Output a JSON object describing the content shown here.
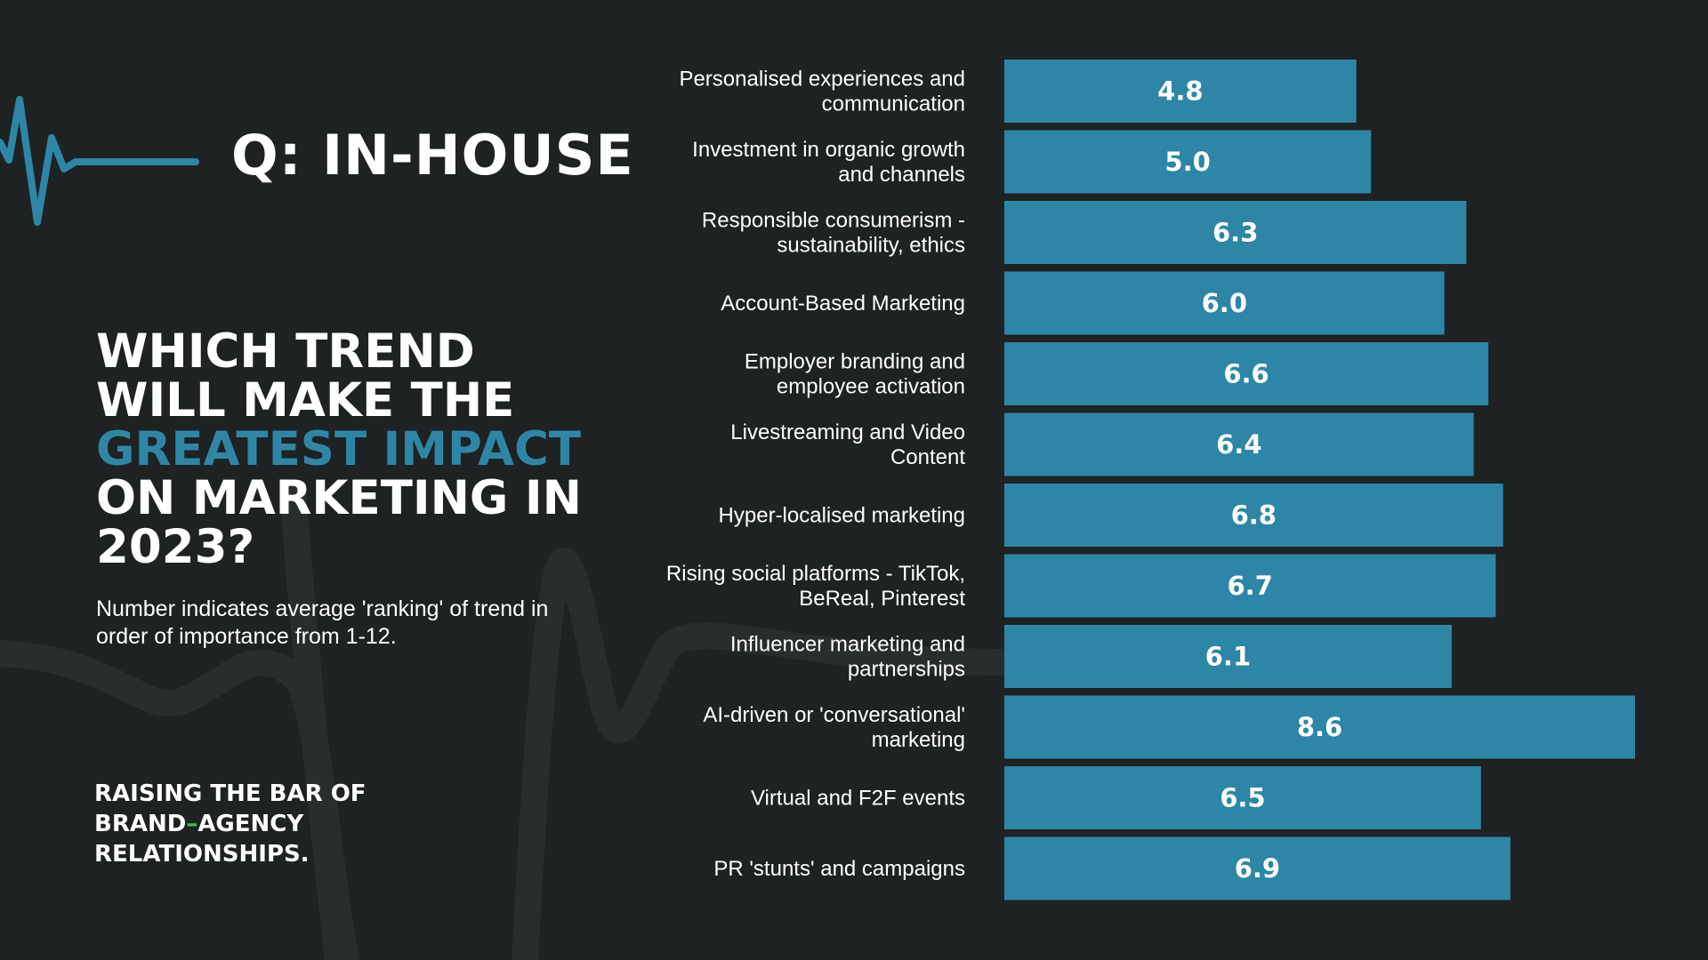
{
  "header": {
    "title": "Q: IN-HOUSE"
  },
  "question": {
    "line1": "WHICH TREND",
    "line2": "WILL MAKE THE",
    "highlight": "GREATEST IMPACT",
    "line4": "ON MARKETING IN",
    "line5": "2023?"
  },
  "note": "Number indicates average 'ranking' of trend in order of importance from 1-12.",
  "tagline": {
    "line1": "RAISING THE BAR OF",
    "brand": "BRAND",
    "dash": "–",
    "agency": "AGENCY",
    "line3": "RELATIONSHIPS."
  },
  "colors": {
    "background": "#1f2222",
    "bar": "#2e86a6",
    "highlight": "#2e86a6",
    "dash": "#3fbf4f"
  },
  "icons": {
    "heartbeat": "heartbeat-line-icon"
  },
  "chart_data": {
    "type": "bar",
    "orientation": "horizontal",
    "title": "",
    "xlabel": "",
    "ylabel": "",
    "xlim": [
      0,
      8.6
    ],
    "grid": false,
    "categories": [
      [
        "Personalised experiences and",
        "communication"
      ],
      [
        "Investment in organic growth",
        "and channels"
      ],
      [
        "Responsible consumerism -",
        "sustainability, ethics"
      ],
      [
        "Account-Based Marketing"
      ],
      [
        "Employer branding and",
        "employee activation"
      ],
      [
        "Livestreaming and Video",
        "Content"
      ],
      [
        "Hyper-localised marketing"
      ],
      [
        "Rising social platforms - TikTok,",
        "BeReal, Pinterest"
      ],
      [
        "Influencer marketing and",
        "partnerships"
      ],
      [
        "AI-driven or 'conversational'",
        "marketing"
      ],
      [
        "Virtual and F2F events"
      ],
      [
        "PR 'stunts' and campaigns"
      ]
    ],
    "values": [
      4.8,
      5.0,
      6.3,
      6.0,
      6.6,
      6.4,
      6.8,
      6.7,
      6.1,
      8.6,
      6.5,
      6.9
    ],
    "value_labels": [
      "4.8",
      "5.0",
      "6.3",
      "6.0",
      "6.6",
      "6.4",
      "6.8",
      "6.7",
      "6.1",
      "8.6",
      "6.5",
      "6.9"
    ]
  }
}
